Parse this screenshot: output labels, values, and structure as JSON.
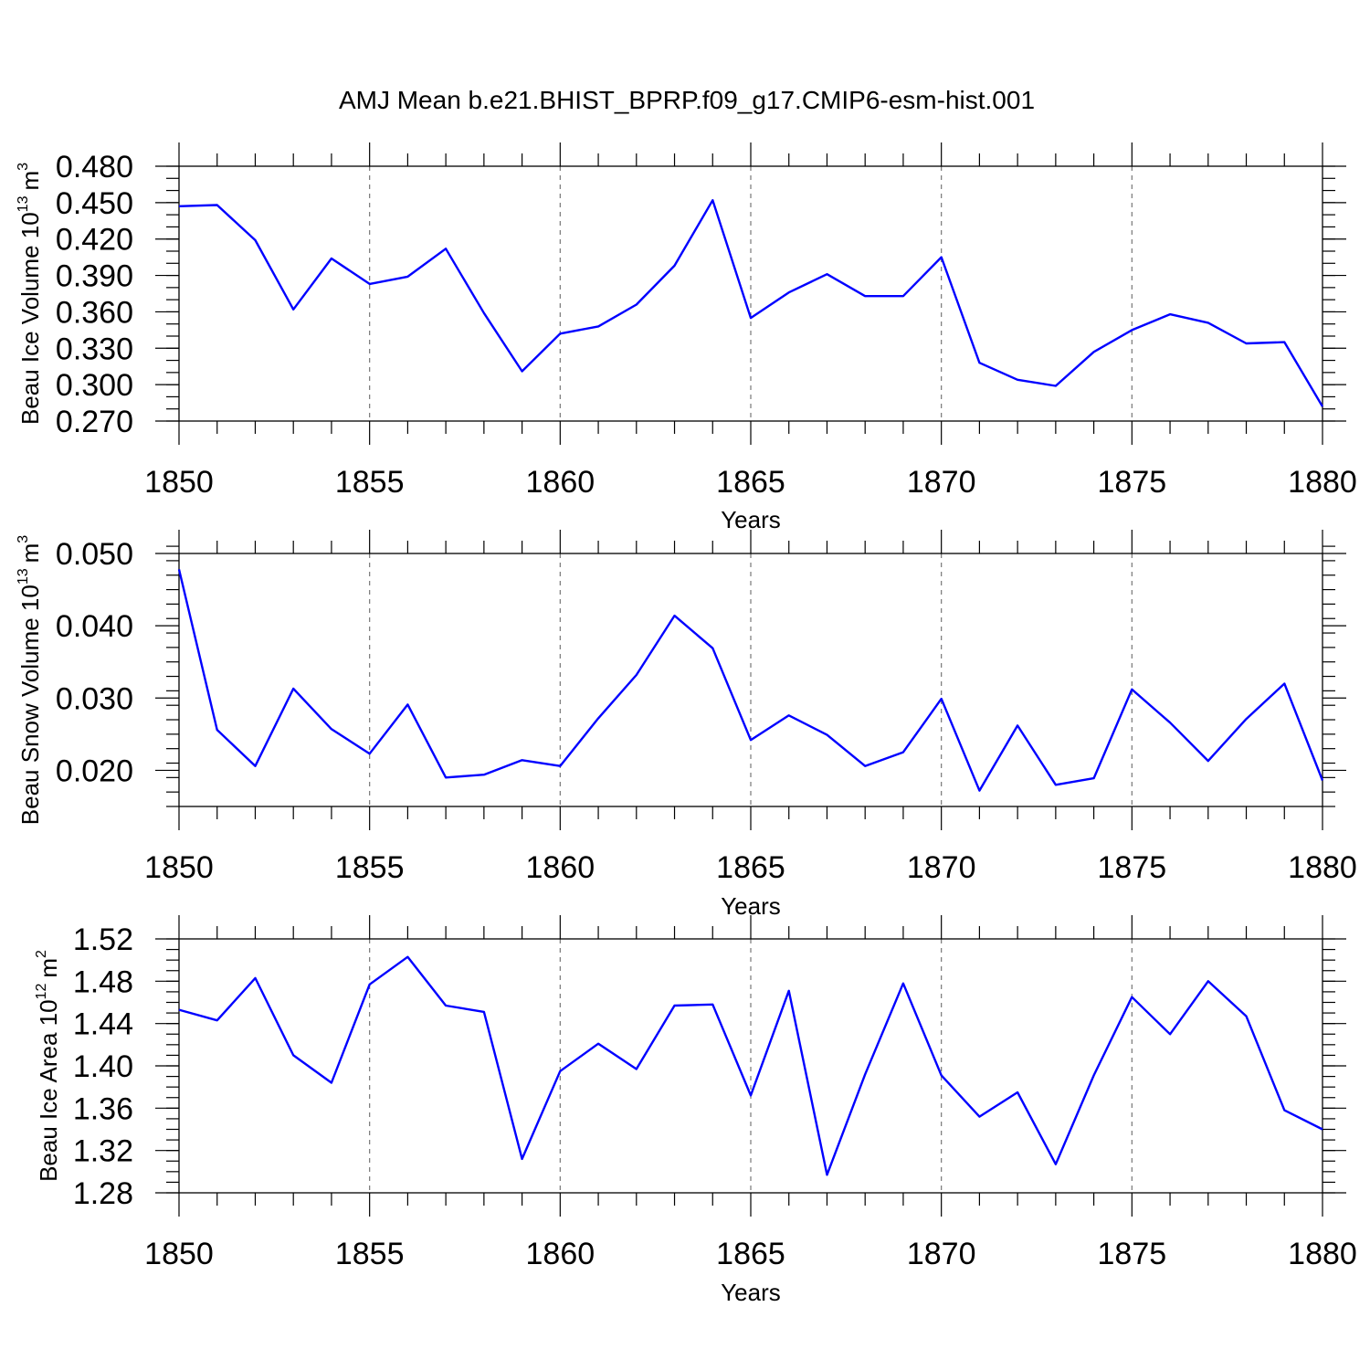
{
  "figure_title": "AMJ Mean b.e21.BHIST_BPRP.f09_g17.CMIP6-esm-hist.001",
  "line_color": "#0000ff",
  "chart_data": [
    {
      "type": "line",
      "ylabel": {
        "main": "Beau Ice Volume 10",
        "exp": "13",
        "unit": "m",
        "unit_exp": "3"
      },
      "xlabel": "Years",
      "xlim": [
        1850,
        1880
      ],
      "ylim": [
        0.27,
        0.48
      ],
      "yticks": [
        0.27,
        0.3,
        0.33,
        0.36,
        0.39,
        0.42,
        0.45,
        0.48
      ],
      "ytick_labels": [
        "0.270",
        "0.300",
        "0.330",
        "0.360",
        "0.390",
        "0.420",
        "0.450",
        "0.480"
      ],
      "yminor": 0.01,
      "xticks": [
        1850,
        1855,
        1860,
        1865,
        1870,
        1875,
        1880
      ],
      "xtick_labels": [
        "1850",
        "1855",
        "1860",
        "1865",
        "1870",
        "1875",
        "1880"
      ],
      "grid": "x-dashed",
      "x": [
        1850,
        1851,
        1852,
        1853,
        1854,
        1855,
        1856,
        1857,
        1858,
        1859,
        1860,
        1861,
        1862,
        1863,
        1864,
        1865,
        1866,
        1867,
        1868,
        1869,
        1870,
        1871,
        1872,
        1873,
        1874,
        1875,
        1876,
        1877,
        1878,
        1879,
        1880
      ],
      "values": [
        0.447,
        0.448,
        0.419,
        0.362,
        0.404,
        0.383,
        0.389,
        0.412,
        0.359,
        0.311,
        0.342,
        0.348,
        0.366,
        0.398,
        0.452,
        0.355,
        0.376,
        0.391,
        0.373,
        0.373,
        0.405,
        0.318,
        0.304,
        0.299,
        0.327,
        0.345,
        0.358,
        0.351,
        0.334,
        0.335,
        0.282
      ]
    },
    {
      "type": "line",
      "ylabel": {
        "main": "Beau Snow Volume 10",
        "exp": "13",
        "unit": "m",
        "unit_exp": "3"
      },
      "xlabel": "Years",
      "xlim": [
        1850,
        1880
      ],
      "ylim": [
        0.015,
        0.05
      ],
      "yticks": [
        0.02,
        0.03,
        0.04,
        0.05
      ],
      "ytick_labels": [
        "0.020",
        "0.030",
        "0.040",
        "0.050"
      ],
      "yminor": 0.002,
      "xticks": [
        1850,
        1855,
        1860,
        1865,
        1870,
        1875,
        1880
      ],
      "xtick_labels": [
        "1850",
        "1855",
        "1860",
        "1865",
        "1870",
        "1875",
        "1880"
      ],
      "grid": "x-dashed",
      "x": [
        1850,
        1851,
        1852,
        1853,
        1854,
        1855,
        1856,
        1857,
        1858,
        1859,
        1860,
        1861,
        1862,
        1863,
        1864,
        1865,
        1866,
        1867,
        1868,
        1869,
        1870,
        1871,
        1872,
        1873,
        1874,
        1875,
        1876,
        1877,
        1878,
        1879,
        1880
      ],
      "values": [
        0.0478,
        0.0256,
        0.0206,
        0.0313,
        0.0257,
        0.0223,
        0.0291,
        0.019,
        0.0194,
        0.0214,
        0.0206,
        0.0272,
        0.0332,
        0.0414,
        0.0369,
        0.0242,
        0.0276,
        0.0249,
        0.0206,
        0.0225,
        0.0299,
        0.0172,
        0.0262,
        0.018,
        0.0189,
        0.0312,
        0.0266,
        0.0213,
        0.0271,
        0.032,
        0.0186
      ]
    },
    {
      "type": "line",
      "ylabel": {
        "main": "Beau Ice Area 10",
        "exp": "12",
        "unit": "m",
        "unit_exp": "2"
      },
      "xlabel": "Years",
      "xlim": [
        1850,
        1880
      ],
      "ylim": [
        1.28,
        1.52
      ],
      "yticks": [
        1.28,
        1.32,
        1.36,
        1.4,
        1.44,
        1.48,
        1.52
      ],
      "ytick_labels": [
        "1.28",
        "1.32",
        "1.36",
        "1.40",
        "1.44",
        "1.48",
        "1.52"
      ],
      "yminor": 0.01,
      "xticks": [
        1850,
        1855,
        1860,
        1865,
        1870,
        1875,
        1880
      ],
      "xtick_labels": [
        "1850",
        "1855",
        "1860",
        "1865",
        "1870",
        "1875",
        "1880"
      ],
      "grid": "x-dashed",
      "x": [
        1850,
        1851,
        1852,
        1853,
        1854,
        1855,
        1856,
        1857,
        1858,
        1859,
        1860,
        1861,
        1862,
        1863,
        1864,
        1865,
        1866,
        1867,
        1868,
        1869,
        1870,
        1871,
        1872,
        1873,
        1874,
        1875,
        1876,
        1877,
        1878,
        1879,
        1880
      ],
      "values": [
        1.453,
        1.443,
        1.483,
        1.41,
        1.384,
        1.477,
        1.503,
        1.457,
        1.451,
        1.312,
        1.395,
        1.421,
        1.397,
        1.457,
        1.458,
        1.372,
        1.471,
        1.297,
        1.392,
        1.478,
        1.391,
        1.352,
        1.375,
        1.307,
        1.391,
        1.465,
        1.43,
        1.48,
        1.447,
        1.358,
        1.34
      ]
    }
  ]
}
